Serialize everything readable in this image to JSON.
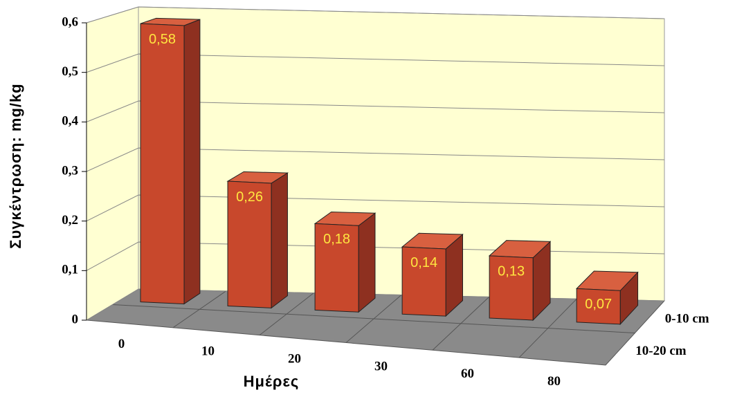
{
  "chart_data": {
    "type": "bar3d",
    "categories": [
      "0",
      "10",
      "20",
      "30",
      "60",
      "80"
    ],
    "depth_categories": [
      "0-10 cm",
      "10-20 cm"
    ],
    "values": [
      0.58,
      0.26,
      0.18,
      0.14,
      0.13,
      0.07
    ],
    "value_labels": [
      "0,58",
      "0,26",
      "0,18",
      "0,14",
      "0,13",
      "0,07"
    ],
    "color": "#c8482c",
    "ylim": [
      0,
      0.6
    ],
    "yticks": [
      0,
      {
        "value": 0.1,
        "label": "0,1"
      },
      {
        "value": 0.2,
        "label": "0,2"
      },
      {
        "value": 0.3,
        "label": "0,3"
      },
      {
        "value": 0.4,
        "label": "0,4"
      },
      {
        "value": 0.5,
        "label": "0,5"
      },
      {
        "value": 0.6,
        "label": "0,6"
      }
    ],
    "xlabel": "Ημέρες",
    "ylabel": "Συγκέντρωση: mg/kg",
    "grid": true
  }
}
